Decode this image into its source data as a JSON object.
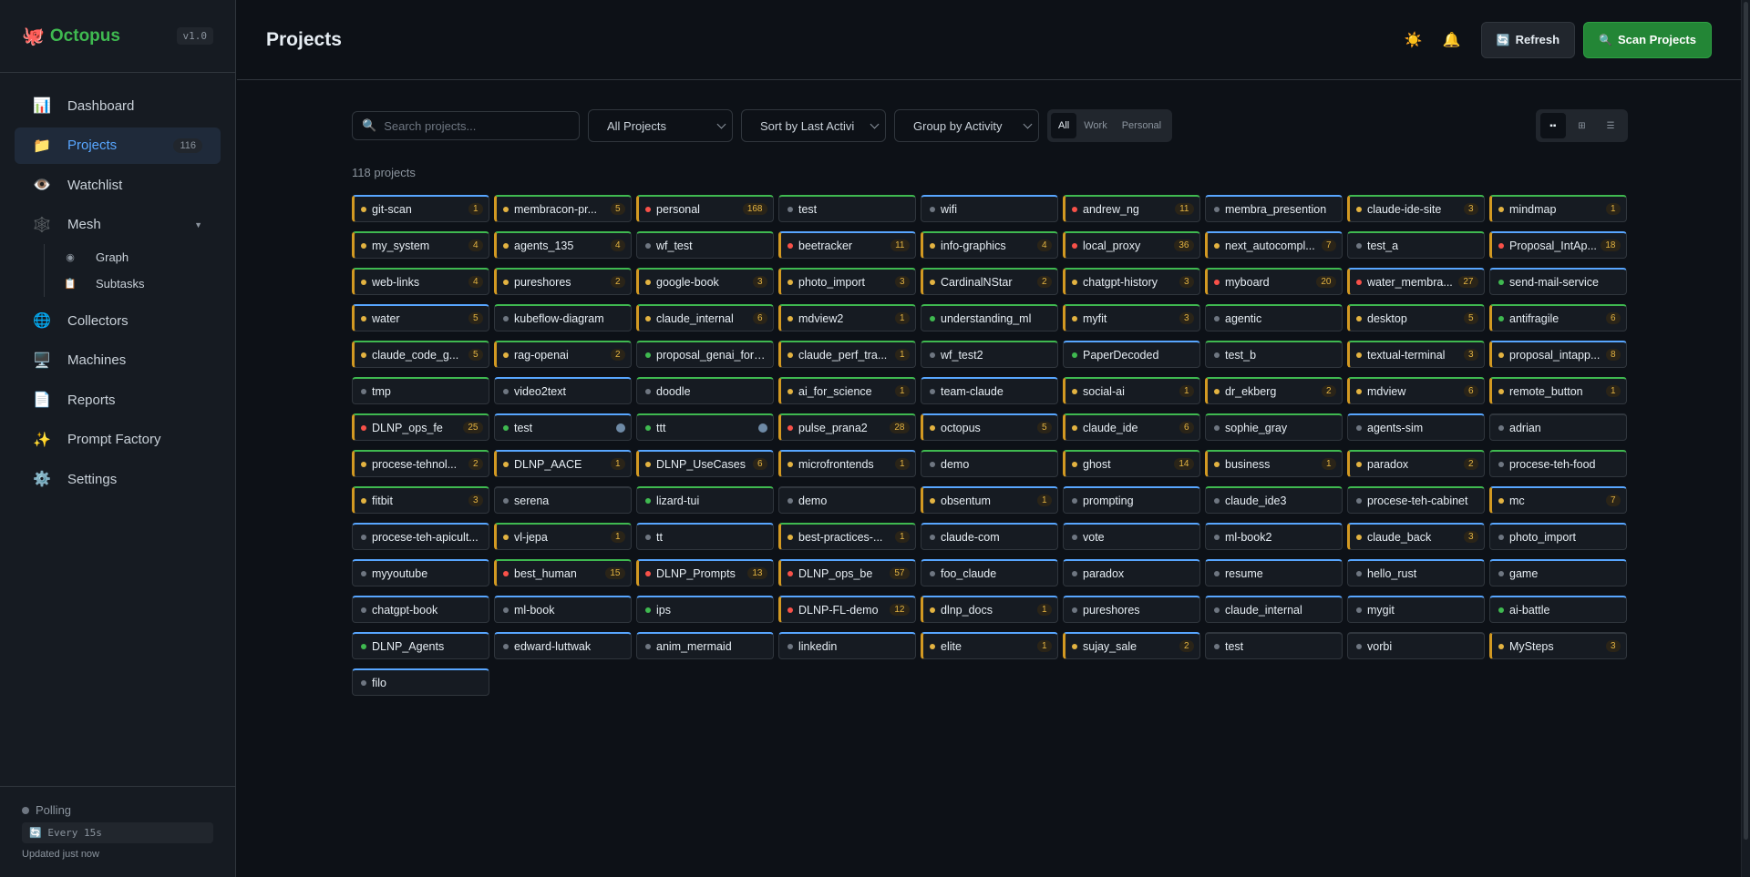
{
  "brand": {
    "logo": "🐙",
    "name": "Octopus",
    "version": "v1.0"
  },
  "nav": {
    "dashboard": {
      "icon": "📊",
      "label": "Dashboard"
    },
    "projects": {
      "icon": "📁",
      "label": "Projects",
      "badge": "116"
    },
    "watchlist": {
      "icon": "👁️",
      "label": "Watchlist"
    },
    "mesh": {
      "icon": "🕸️",
      "label": "Mesh",
      "caret": "▼"
    },
    "graph": {
      "icon": "◉",
      "label": "Graph"
    },
    "subtasks": {
      "icon": "📋",
      "label": "Subtasks"
    },
    "collectors": {
      "icon": "🌐",
      "label": "Collectors"
    },
    "machines": {
      "icon": "🖥️",
      "label": "Machines"
    },
    "reports": {
      "icon": "📄",
      "label": "Reports"
    },
    "prompt_factory": {
      "icon": "✨",
      "label": "Prompt Factory"
    },
    "settings": {
      "icon": "⚙️",
      "label": "Settings"
    }
  },
  "footer": {
    "status": "Polling",
    "interval": "🔄 Every 15s",
    "updated": "Updated just now"
  },
  "header": {
    "title": "Projects",
    "theme_icon": "☀️",
    "bell_icon": "🔔",
    "refresh": {
      "icon": "🔄",
      "label": "Refresh"
    },
    "scan": {
      "icon": "🔍",
      "label": "Scan Projects"
    }
  },
  "toolbar": {
    "search_icon": "🔍",
    "search_placeholder": "Search projects...",
    "filter": "All Projects",
    "sort": "Sort by Last Activi",
    "group": "Group by Activity",
    "segments": {
      "all": "All",
      "work": "Work",
      "personal": "Personal"
    },
    "views": {
      "compact": "▪▪",
      "grid": "⊞",
      "list": "☰"
    }
  },
  "count_label": "118 projects",
  "projects": [
    {
      "name": "git-scan",
      "dot": "yellow",
      "count": "1",
      "top": "blue",
      "left": "yellow"
    },
    {
      "name": "membracon-pr...",
      "dot": "yellow",
      "count": "5",
      "top": "green",
      "left": "yellow"
    },
    {
      "name": "personal",
      "dot": "red",
      "count": "168",
      "top": "green",
      "left": "yellow"
    },
    {
      "name": "test",
      "dot": "gray",
      "count": "",
      "top": "green",
      "left": ""
    },
    {
      "name": "wifi",
      "dot": "gray",
      "count": "",
      "top": "blue",
      "left": ""
    },
    {
      "name": "andrew_ng",
      "dot": "red",
      "count": "11",
      "top": "green",
      "left": "yellow"
    },
    {
      "name": "membra_presention",
      "dot": "gray",
      "count": "",
      "top": "blue",
      "left": ""
    },
    {
      "name": "claude-ide-site",
      "dot": "yellow",
      "count": "3",
      "top": "green",
      "left": "yellow"
    },
    {
      "name": "mindmap",
      "dot": "yellow",
      "count": "1",
      "top": "green",
      "left": "yellow"
    },
    {
      "name": "my_system",
      "dot": "yellow",
      "count": "4",
      "top": "green",
      "left": "yellow"
    },
    {
      "name": "agents_135",
      "dot": "yellow",
      "count": "4",
      "top": "green",
      "left": "yellow"
    },
    {
      "name": "wf_test",
      "dot": "gray",
      "count": "",
      "top": "green",
      "left": ""
    },
    {
      "name": "beetracker",
      "dot": "red",
      "count": "11",
      "top": "blue",
      "left": "yellow"
    },
    {
      "name": "info-graphics",
      "dot": "yellow",
      "count": "4",
      "top": "green",
      "left": "yellow"
    },
    {
      "name": "local_proxy",
      "dot": "red",
      "count": "36",
      "top": "green",
      "left": "yellow"
    },
    {
      "name": "next_autocompl...",
      "dot": "yellow",
      "count": "7",
      "top": "blue",
      "left": "yellow"
    },
    {
      "name": "test_a",
      "dot": "gray",
      "count": "",
      "top": "green",
      "left": ""
    },
    {
      "name": "Proposal_IntAp...",
      "dot": "red",
      "count": "18",
      "top": "blue",
      "left": "yellow"
    },
    {
      "name": "web-links",
      "dot": "yellow",
      "count": "4",
      "top": "green",
      "left": "yellow"
    },
    {
      "name": "pureshores",
      "dot": "yellow",
      "count": "2",
      "top": "green",
      "left": "yellow"
    },
    {
      "name": "google-book",
      "dot": "yellow",
      "count": "3",
      "top": "green",
      "left": "yellow"
    },
    {
      "name": "photo_import",
      "dot": "yellow",
      "count": "3",
      "top": "green",
      "left": "yellow"
    },
    {
      "name": "CardinalNStar",
      "dot": "yellow",
      "count": "2",
      "top": "green",
      "left": "yellow"
    },
    {
      "name": "chatgpt-history",
      "dot": "yellow",
      "count": "3",
      "top": "green",
      "left": "yellow"
    },
    {
      "name": "myboard",
      "dot": "red",
      "count": "20",
      "top": "green",
      "left": "yellow"
    },
    {
      "name": "water_membra...",
      "dot": "red",
      "count": "27",
      "top": "blue",
      "left": "yellow"
    },
    {
      "name": "send-mail-service",
      "dot": "green",
      "count": "",
      "top": "blue",
      "left": ""
    },
    {
      "name": "water",
      "dot": "yellow",
      "count": "5",
      "top": "blue",
      "left": "yellow"
    },
    {
      "name": "kubeflow-diagram",
      "dot": "gray",
      "count": "",
      "top": "green",
      "left": ""
    },
    {
      "name": "claude_internal",
      "dot": "yellow",
      "count": "6",
      "top": "green",
      "left": "yellow"
    },
    {
      "name": "mdview2",
      "dot": "yellow",
      "count": "1",
      "top": "green",
      "left": "yellow"
    },
    {
      "name": "understanding_ml",
      "dot": "green",
      "count": "",
      "top": "green",
      "left": ""
    },
    {
      "name": "myfit",
      "dot": "yellow",
      "count": "3",
      "top": "green",
      "left": "yellow"
    },
    {
      "name": "agentic",
      "dot": "gray",
      "count": "",
      "top": "green",
      "left": ""
    },
    {
      "name": "desktop",
      "dot": "yellow",
      "count": "5",
      "top": "green",
      "left": "yellow"
    },
    {
      "name": "antifragile",
      "dot": "green",
      "count": "6",
      "top": "green",
      "left": "yellow"
    },
    {
      "name": "claude_code_g...",
      "dot": "yellow",
      "count": "5",
      "top": "green",
      "left": "yellow"
    },
    {
      "name": "rag-openai",
      "dot": "yellow",
      "count": "2",
      "top": "green",
      "left": "yellow"
    },
    {
      "name": "proposal_genai_fore...",
      "dot": "green",
      "count": "",
      "top": "green",
      "left": ""
    },
    {
      "name": "claude_perf_tra...",
      "dot": "yellow",
      "count": "1",
      "top": "green",
      "left": "yellow"
    },
    {
      "name": "wf_test2",
      "dot": "gray",
      "count": "",
      "top": "green",
      "left": ""
    },
    {
      "name": "PaperDecoded",
      "dot": "green",
      "count": "",
      "top": "blue",
      "left": ""
    },
    {
      "name": "test_b",
      "dot": "gray",
      "count": "",
      "top": "green",
      "left": ""
    },
    {
      "name": "textual-terminal",
      "dot": "yellow",
      "count": "3",
      "top": "green",
      "left": "yellow"
    },
    {
      "name": "proposal_intapp...",
      "dot": "yellow",
      "count": "8",
      "top": "blue",
      "left": "yellow"
    },
    {
      "name": "tmp",
      "dot": "gray",
      "count": "",
      "top": "green",
      "left": ""
    },
    {
      "name": "video2text",
      "dot": "gray",
      "count": "",
      "top": "blue",
      "left": ""
    },
    {
      "name": "doodle",
      "dot": "gray",
      "count": "",
      "top": "green",
      "left": ""
    },
    {
      "name": "ai_for_science",
      "dot": "yellow",
      "count": "1",
      "top": "green",
      "left": "yellow"
    },
    {
      "name": "team-claude",
      "dot": "gray",
      "count": "",
      "top": "blue",
      "left": ""
    },
    {
      "name": "social-ai",
      "dot": "yellow",
      "count": "1",
      "top": "green",
      "left": "yellow"
    },
    {
      "name": "dr_ekberg",
      "dot": "yellow",
      "count": "2",
      "top": "green",
      "left": "yellow"
    },
    {
      "name": "mdview",
      "dot": "yellow",
      "count": "6",
      "top": "green",
      "left": "yellow"
    },
    {
      "name": "remote_button",
      "dot": "yellow",
      "count": "1",
      "top": "green",
      "left": "yellow"
    },
    {
      "name": "DLNP_ops_fe",
      "dot": "red",
      "count": "25",
      "top": "green",
      "left": "yellow"
    },
    {
      "name": "test",
      "dot": "green",
      "count": "",
      "top": "blue",
      "left": "",
      "circle": true
    },
    {
      "name": "ttt",
      "dot": "green",
      "count": "",
      "top": "green",
      "left": "",
      "circle": true
    },
    {
      "name": "pulse_prana2",
      "dot": "red",
      "count": "28",
      "top": "green",
      "left": "yellow"
    },
    {
      "name": "octopus",
      "dot": "yellow",
      "count": "5",
      "top": "blue",
      "left": "yellow"
    },
    {
      "name": "claude_ide",
      "dot": "yellow",
      "count": "6",
      "top": "green",
      "left": "yellow"
    },
    {
      "name": "sophie_gray",
      "dot": "gray",
      "count": "",
      "top": "green",
      "left": ""
    },
    {
      "name": "agents-sim",
      "dot": "gray",
      "count": "",
      "top": "blue",
      "left": ""
    },
    {
      "name": "adrian",
      "dot": "gray",
      "count": "",
      "top": "",
      "left": ""
    },
    {
      "name": "procese-tehnol...",
      "dot": "yellow",
      "count": "2",
      "top": "green",
      "left": "yellow"
    },
    {
      "name": "DLNP_AACE",
      "dot": "yellow",
      "count": "1",
      "top": "blue",
      "left": "yellow"
    },
    {
      "name": "DLNP_UseCases",
      "dot": "yellow",
      "count": "6",
      "top": "blue",
      "left": "yellow"
    },
    {
      "name": "microfrontends",
      "dot": "yellow",
      "count": "1",
      "top": "blue",
      "left": "yellow"
    },
    {
      "name": "demo",
      "dot": "gray",
      "count": "",
      "top": "green",
      "left": ""
    },
    {
      "name": "ghost",
      "dot": "yellow",
      "count": "14",
      "top": "green",
      "left": "yellow"
    },
    {
      "name": "business",
      "dot": "yellow",
      "count": "1",
      "top": "green",
      "left": "yellow"
    },
    {
      "name": "paradox",
      "dot": "yellow",
      "count": "2",
      "top": "green",
      "left": "yellow"
    },
    {
      "name": "procese-teh-food",
      "dot": "gray",
      "count": "",
      "top": "green",
      "left": ""
    },
    {
      "name": "fitbit",
      "dot": "yellow",
      "count": "3",
      "top": "green",
      "left": "yellow"
    },
    {
      "name": "serena",
      "dot": "gray",
      "count": "",
      "top": "",
      "left": ""
    },
    {
      "name": "lizard-tui",
      "dot": "green",
      "count": "",
      "top": "green",
      "left": ""
    },
    {
      "name": "demo",
      "dot": "gray",
      "count": "",
      "top": "",
      "left": ""
    },
    {
      "name": "obsentum",
      "dot": "yellow",
      "count": "1",
      "top": "blue",
      "left": "yellow"
    },
    {
      "name": "prompting",
      "dot": "gray",
      "count": "",
      "top": "blue",
      "left": ""
    },
    {
      "name": "claude_ide3",
      "dot": "gray",
      "count": "",
      "top": "green",
      "left": ""
    },
    {
      "name": "procese-teh-cabinet",
      "dot": "gray",
      "count": "",
      "top": "green",
      "left": ""
    },
    {
      "name": "mc",
      "dot": "yellow",
      "count": "7",
      "top": "blue",
      "left": "yellow"
    },
    {
      "name": "procese-teh-apicult...",
      "dot": "gray",
      "count": "",
      "top": "blue",
      "left": ""
    },
    {
      "name": "vl-jepa",
      "dot": "yellow",
      "count": "1",
      "top": "green",
      "left": "yellow"
    },
    {
      "name": "tt",
      "dot": "gray",
      "count": "",
      "top": "blue",
      "left": ""
    },
    {
      "name": "best-practices-...",
      "dot": "yellow",
      "count": "1",
      "top": "green",
      "left": "yellow"
    },
    {
      "name": "claude-com",
      "dot": "gray",
      "count": "",
      "top": "blue",
      "left": ""
    },
    {
      "name": "vote",
      "dot": "gray",
      "count": "",
      "top": "blue",
      "left": ""
    },
    {
      "name": "ml-book2",
      "dot": "gray",
      "count": "",
      "top": "blue",
      "left": ""
    },
    {
      "name": "claude_back",
      "dot": "yellow",
      "count": "3",
      "top": "blue",
      "left": "yellow"
    },
    {
      "name": "photo_import",
      "dot": "gray",
      "count": "",
      "top": "blue",
      "left": ""
    },
    {
      "name": "myyoutube",
      "dot": "gray",
      "count": "",
      "top": "blue",
      "left": ""
    },
    {
      "name": "best_human",
      "dot": "red",
      "count": "15",
      "top": "green",
      "left": "yellow"
    },
    {
      "name": "DLNP_Prompts",
      "dot": "red",
      "count": "13",
      "top": "blue",
      "left": "yellow"
    },
    {
      "name": "DLNP_ops_be",
      "dot": "red",
      "count": "57",
      "top": "blue",
      "left": "yellow"
    },
    {
      "name": "foo_claude",
      "dot": "gray",
      "count": "",
      "top": "blue",
      "left": ""
    },
    {
      "name": "paradox",
      "dot": "gray",
      "count": "",
      "top": "blue",
      "left": ""
    },
    {
      "name": "resume",
      "dot": "gray",
      "count": "",
      "top": "blue",
      "left": ""
    },
    {
      "name": "hello_rust",
      "dot": "gray",
      "count": "",
      "top": "blue",
      "left": ""
    },
    {
      "name": "game",
      "dot": "gray",
      "count": "",
      "top": "blue",
      "left": ""
    },
    {
      "name": "chatgpt-book",
      "dot": "gray",
      "count": "",
      "top": "blue",
      "left": ""
    },
    {
      "name": "ml-book",
      "dot": "gray",
      "count": "",
      "top": "blue",
      "left": ""
    },
    {
      "name": "ips",
      "dot": "green",
      "count": "",
      "top": "blue",
      "left": ""
    },
    {
      "name": "DLNP-FL-demo",
      "dot": "red",
      "count": "12",
      "top": "blue",
      "left": "yellow"
    },
    {
      "name": "dlnp_docs",
      "dot": "yellow",
      "count": "1",
      "top": "blue",
      "left": "yellow"
    },
    {
      "name": "pureshores",
      "dot": "gray",
      "count": "",
      "top": "blue",
      "left": ""
    },
    {
      "name": "claude_internal",
      "dot": "gray",
      "count": "",
      "top": "blue",
      "left": ""
    },
    {
      "name": "mygit",
      "dot": "gray",
      "count": "",
      "top": "blue",
      "left": ""
    },
    {
      "name": "ai-battle",
      "dot": "green",
      "count": "",
      "top": "blue",
      "left": ""
    },
    {
      "name": "DLNP_Agents",
      "dot": "green",
      "count": "",
      "top": "blue",
      "left": ""
    },
    {
      "name": "edward-luttwak",
      "dot": "gray",
      "count": "",
      "top": "blue",
      "left": ""
    },
    {
      "name": "anim_mermaid",
      "dot": "gray",
      "count": "",
      "top": "blue",
      "left": ""
    },
    {
      "name": "linkedin",
      "dot": "gray",
      "count": "",
      "top": "blue",
      "left": ""
    },
    {
      "name": "elite",
      "dot": "yellow",
      "count": "1",
      "top": "blue",
      "left": "yellow"
    },
    {
      "name": "sujay_sale",
      "dot": "yellow",
      "count": "2",
      "top": "blue",
      "left": "yellow"
    },
    {
      "name": "test",
      "dot": "gray",
      "count": "",
      "top": "",
      "left": ""
    },
    {
      "name": "vorbi",
      "dot": "gray",
      "count": "",
      "top": "",
      "left": ""
    },
    {
      "name": "MySteps",
      "dot": "yellow",
      "count": "3",
      "top": "",
      "left": "yellow"
    },
    {
      "name": "filo",
      "dot": "gray",
      "count": "",
      "top": "blue",
      "left": ""
    }
  ]
}
